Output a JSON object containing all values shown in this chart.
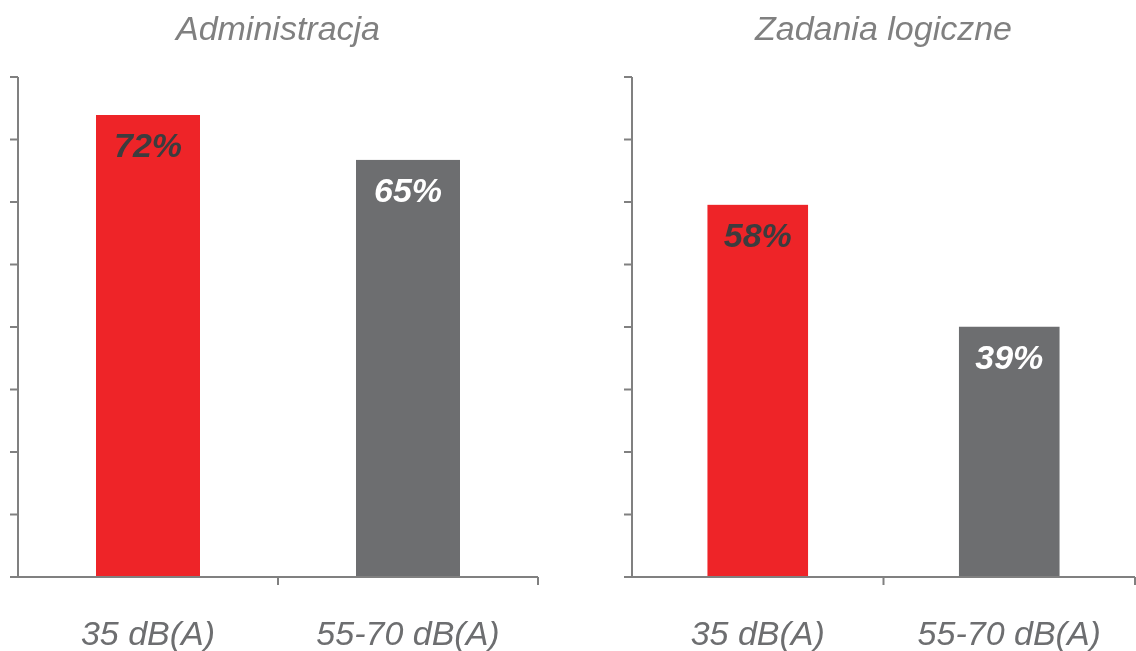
{
  "chart_data": [
    {
      "type": "bar",
      "title": "Administracja",
      "categories": [
        "35 dB(A)",
        "55-70 dB(A)"
      ],
      "values": [
        72,
        65
      ],
      "colors": [
        "#ee2428",
        "#6d6e70"
      ],
      "value_labels": [
        "72%",
        "65%"
      ]
    },
    {
      "type": "bar",
      "title": "Zadania logiczne",
      "categories": [
        "35 dB(A)",
        "55-70 dB(A)"
      ],
      "values": [
        58,
        39
      ],
      "colors": [
        "#ee2428",
        "#6d6e70"
      ],
      "value_labels": [
        "58%",
        "39%"
      ]
    }
  ]
}
